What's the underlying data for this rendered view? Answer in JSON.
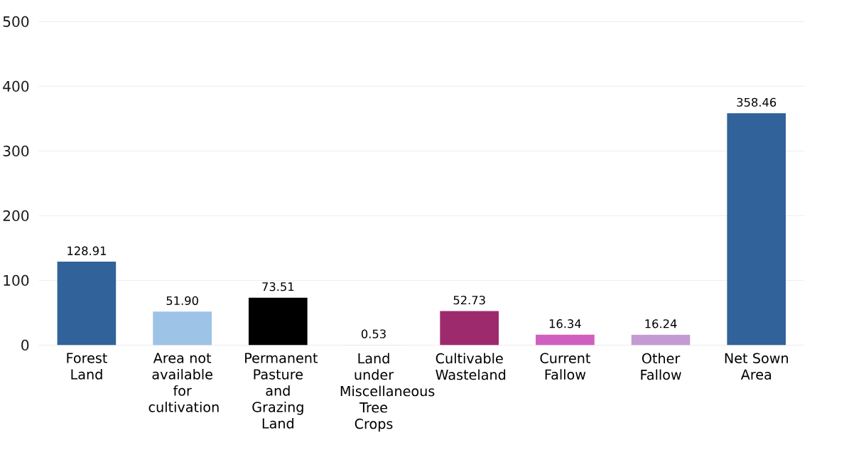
{
  "chart_data": {
    "type": "bar",
    "categories": [
      "Forest Land",
      "Area not available for cultivation",
      "Permanent Pasture and Grazing Land",
      "Land under Miscellaneous Tree Crops",
      "Cultivable Wasteland",
      "Current Fallow",
      "Other Fallow",
      "Net Sown Area"
    ],
    "values": [
      128.91,
      51.9,
      73.51,
      0.53,
      52.73,
      16.34,
      16.24,
      358.46
    ],
    "value_labels": [
      "128.91",
      "51.90",
      "73.51",
      "0.53",
      "52.73",
      "16.34",
      "16.24",
      "358.46"
    ],
    "colors": [
      "#31629a",
      "#9dc3e6",
      "#000000",
      "#d9d9d9",
      "#9e2a6e",
      "#d060c0",
      "#c39bd3",
      "#31629a"
    ],
    "ylim": [
      0,
      500
    ],
    "yticks": [
      0,
      100,
      200,
      300,
      400,
      500
    ],
    "grid": "y"
  }
}
